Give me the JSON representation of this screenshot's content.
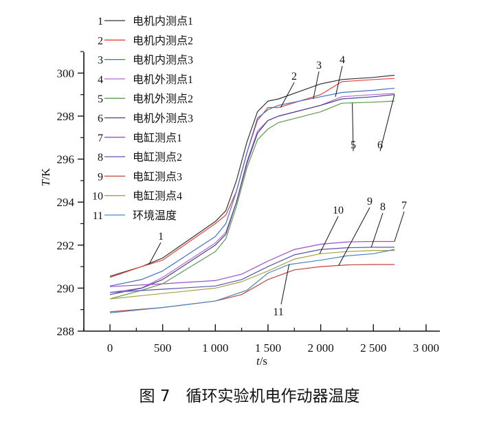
{
  "chart_data": {
    "type": "line",
    "caption": "图 7　循环实验机电作动器温度",
    "xlabel": {
      "var": "t",
      "unit": "/s"
    },
    "ylabel": {
      "var": "T",
      "unit": "/K"
    },
    "xlim": [
      -250,
      3100
    ],
    "ylim": [
      288,
      301
    ],
    "xticks": [
      0,
      500,
      1000,
      1500,
      2000,
      2500,
      3000
    ],
    "xtick_labels": [
      "0",
      "500",
      "1 000",
      "1 500",
      "2 000",
      "2 500",
      "3 000"
    ],
    "yticks": [
      288,
      290,
      292,
      294,
      296,
      298,
      300
    ],
    "ytick_labels": [
      "288",
      "290",
      "292",
      "294",
      "296",
      "298",
      "300"
    ],
    "grid": false,
    "legend_position": "top-left",
    "series": [
      {
        "id": "1",
        "name": "电机内测点1",
        "color": "#333333",
        "x": [
          0,
          300,
          500,
          1000,
          1100,
          1200,
          1300,
          1400,
          1500,
          1600,
          2000,
          2200,
          2500,
          2700
        ],
        "y": [
          290.55,
          291.0,
          291.4,
          293.1,
          293.6,
          295.0,
          296.8,
          298.2,
          298.7,
          298.8,
          299.5,
          299.7,
          299.8,
          299.9
        ]
      },
      {
        "id": "2",
        "name": "电机内测点2",
        "color": "#e8413c",
        "x": [
          0,
          300,
          500,
          1000,
          1100,
          1200,
          1300,
          1400,
          1500,
          1600,
          2000,
          2200,
          2500,
          2700
        ],
        "y": [
          290.5,
          291.0,
          291.3,
          293.0,
          293.4,
          294.5,
          296.3,
          297.8,
          298.4,
          298.4,
          299.0,
          299.6,
          299.7,
          299.75
        ]
      },
      {
        "id": "3",
        "name": "电机内测点3",
        "color": "#3f6fc4",
        "x": [
          0,
          300,
          500,
          1000,
          1100,
          1200,
          1300,
          1400,
          1500,
          1600,
          2000,
          2200,
          2500,
          2700
        ],
        "y": [
          290.1,
          290.4,
          290.8,
          292.4,
          293.0,
          294.5,
          296.3,
          297.9,
          298.3,
          298.5,
          298.9,
          299.1,
          299.2,
          299.3
        ]
      },
      {
        "id": "4",
        "name": "电机外测点1",
        "color": "#b06ad0",
        "x": [
          0,
          300,
          500,
          1000,
          1100,
          1200,
          1300,
          1400,
          1500,
          1600,
          2000,
          2200,
          2500,
          2700
        ],
        "y": [
          289.8,
          290.0,
          290.5,
          292.1,
          292.6,
          294.0,
          295.9,
          297.3,
          297.8,
          298.0,
          298.5,
          298.9,
          299.0,
          299.05
        ]
      },
      {
        "id": "5",
        "name": "电机外测点2",
        "color": "#5a9a4a",
        "x": [
          0,
          300,
          500,
          1000,
          1100,
          1200,
          1300,
          1400,
          1500,
          1600,
          2000,
          2200,
          2500,
          2700
        ],
        "y": [
          289.5,
          289.9,
          290.2,
          291.7,
          292.3,
          293.8,
          295.6,
          296.9,
          297.4,
          297.7,
          298.2,
          298.6,
          298.65,
          298.7
        ]
      },
      {
        "id": "6",
        "name": "电机外测点3",
        "color": "#4a3e8c",
        "x": [
          0,
          300,
          500,
          1000,
          1100,
          1200,
          1300,
          1400,
          1500,
          1600,
          2000,
          2200,
          2500,
          2700
        ],
        "y": [
          289.7,
          290.0,
          290.4,
          292.0,
          292.5,
          294.0,
          295.8,
          297.2,
          297.8,
          298.0,
          298.5,
          298.8,
          298.9,
          299.0
        ]
      },
      {
        "id": "7",
        "name": "电缸测点1",
        "color": "#9a4fc8",
        "x": [
          0,
          500,
          1000,
          1250,
          1500,
          1750,
          2000,
          2250,
          2500,
          2700
        ],
        "y": [
          290.07,
          290.2,
          290.35,
          290.65,
          291.26,
          291.8,
          292.04,
          292.15,
          292.17,
          292.17
        ]
      },
      {
        "id": "8",
        "name": "电缸测点2",
        "color": "#5555b0",
        "x": [
          0,
          500,
          1000,
          1250,
          1500,
          1750,
          2000,
          2250,
          2500,
          2700
        ],
        "y": [
          289.8,
          289.95,
          290.1,
          290.4,
          291.0,
          291.55,
          291.8,
          291.88,
          291.9,
          291.9
        ]
      },
      {
        "id": "9",
        "name": "电缸测点3",
        "color": "#c0443a",
        "x": [
          0,
          500,
          1000,
          1250,
          1500,
          1750,
          2000,
          2250,
          2500,
          2700
        ],
        "y": [
          288.9,
          289.1,
          289.4,
          289.7,
          290.4,
          290.85,
          291.0,
          291.08,
          291.1,
          291.1
        ]
      },
      {
        "id": "10",
        "name": "电缸测点4",
        "color": "#a8a040",
        "x": [
          0,
          500,
          1000,
          1250,
          1500,
          1750,
          2000,
          2250,
          2500,
          2700
        ],
        "y": [
          289.5,
          289.75,
          290.0,
          290.3,
          290.8,
          291.35,
          291.6,
          291.7,
          291.75,
          291.75
        ]
      },
      {
        "id": "11",
        "name": "环境温度",
        "color": "#4a86c0",
        "x": [
          0,
          500,
          1000,
          1300,
          1500,
          1700,
          2000,
          2250,
          2500,
          2700
        ],
        "y": [
          288.85,
          289.1,
          289.4,
          289.9,
          290.7,
          291.1,
          291.3,
          291.5,
          291.6,
          291.8
        ]
      }
    ]
  }
}
